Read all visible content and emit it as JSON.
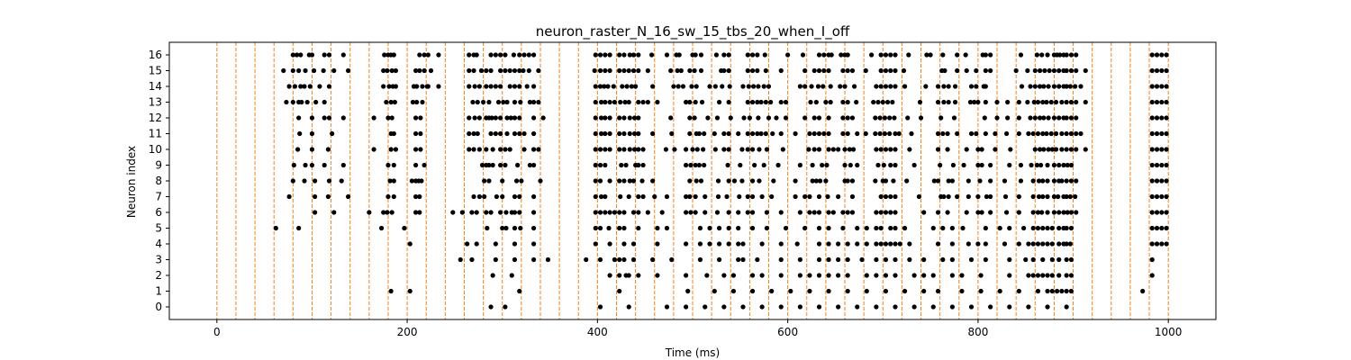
{
  "chart_data": {
    "type": "scatter",
    "title": "neuron_raster_N_16_sw_15_tbs_20_when_I_off",
    "xlabel": "Time (ms)",
    "ylabel": "Neuron index",
    "xlim": [
      -50,
      1050
    ],
    "ylim": [
      -0.8,
      16.8
    ],
    "x_ticks": [
      0,
      200,
      400,
      600,
      800,
      1000
    ],
    "y_ticks": [
      0,
      1,
      2,
      3,
      4,
      5,
      6,
      7,
      8,
      9,
      10,
      11,
      12,
      13,
      14,
      15,
      16
    ],
    "grid": false,
    "series_color": "#000000",
    "vline_color": "#ff7f0e",
    "vlines": [
      0,
      20,
      40,
      60,
      80,
      100,
      120,
      140,
      160,
      180,
      200,
      220,
      240,
      260,
      280,
      300,
      320,
      340,
      360,
      380,
      400,
      420,
      440,
      460,
      480,
      500,
      520,
      540,
      560,
      580,
      600,
      620,
      640,
      660,
      680,
      700,
      720,
      740,
      760,
      780,
      800,
      820,
      840,
      860,
      880,
      900,
      920,
      940,
      960,
      980,
      1000
    ],
    "spikes": [
      {
        "neuron": 16,
        "times": [
          80,
          84,
          88,
          97,
          100,
          113,
          118,
          133,
          176,
          180,
          183,
          186,
          213,
          218,
          222,
          233,
          265,
          270,
          273,
          288,
          293,
          298,
          303,
          312,
          318,
          323,
          328,
          333,
          398,
          403,
          408,
          413,
          423,
          428,
          434,
          438,
          443,
          457,
          473,
          483,
          486,
          500,
          503,
          509,
          525,
          533,
          538,
          558,
          563,
          568,
          576,
          600,
          616,
          633,
          638,
          643,
          646,
          656,
          660,
          663,
          688,
          698,
          703,
          708,
          713,
          727,
          746,
          750,
          763,
          778,
          787,
          805,
          808,
          813,
          845,
          862,
          867,
          873,
          880,
          883,
          886,
          890,
          893,
          898,
          903,
          983,
          988,
          993,
          998
        ]
      },
      {
        "neuron": 15,
        "times": [
          70,
          80,
          86,
          93,
          102,
          112,
          123,
          138,
          175,
          179,
          184,
          188,
          209,
          213,
          218,
          225,
          265,
          270,
          278,
          283,
          288,
          298,
          303,
          308,
          313,
          318,
          322,
          328,
          338,
          397,
          403,
          408,
          413,
          423,
          428,
          433,
          438,
          443,
          453,
          477,
          484,
          488,
          497,
          502,
          509,
          530,
          533,
          538,
          558,
          563,
          568,
          577,
          593,
          618,
          628,
          633,
          638,
          643,
          658,
          663,
          668,
          682,
          698,
          703,
          708,
          713,
          722,
          762,
          765,
          778,
          788,
          798,
          808,
          813,
          840,
          852,
          860,
          865,
          870,
          875,
          880,
          885,
          890,
          893,
          898,
          903,
          913,
          983,
          988,
          993,
          998
        ]
      },
      {
        "neuron": 14,
        "times": [
          76,
          82,
          88,
          92,
          98,
          108,
          118,
          175,
          181,
          185,
          188,
          207,
          210,
          216,
          222,
          221,
          233,
          265,
          271,
          276,
          283,
          288,
          293,
          298,
          308,
          313,
          318,
          326,
          333,
          398,
          403,
          407,
          411,
          417,
          426,
          431,
          436,
          440,
          458,
          480,
          485,
          490,
          499,
          504,
          518,
          524,
          531,
          539,
          553,
          559,
          564,
          569,
          575,
          580,
          613,
          618,
          625,
          632,
          637,
          645,
          655,
          660,
          670,
          693,
          698,
          703,
          708,
          713,
          723,
          745,
          758,
          764,
          769,
          776,
          793,
          798,
          806,
          808,
          846,
          855,
          860,
          865,
          869,
          874,
          880,
          885,
          890,
          893,
          897,
          902,
          908,
          983,
          988,
          993,
          998
        ]
      },
      {
        "neuron": 13,
        "times": [
          73,
          80,
          86,
          89,
          95,
          104,
          113,
          178,
          183,
          187,
          206,
          210,
          216,
          269,
          274,
          280,
          286,
          296,
          301,
          305,
          313,
          319,
          329,
          333,
          338,
          398,
          404,
          408,
          413,
          418,
          424,
          429,
          433,
          443,
          448,
          453,
          463,
          493,
          497,
          503,
          510,
          528,
          538,
          558,
          563,
          568,
          572,
          577,
          582,
          593,
          598,
          624,
          630,
          640,
          645,
          658,
          663,
          672,
          690,
          695,
          700,
          705,
          710,
          739,
          758,
          764,
          769,
          776,
          792,
          796,
          800,
          808,
          820,
          831,
          843,
          852,
          859,
          863,
          868,
          872,
          877,
          882,
          888,
          893,
          898,
          903,
          913,
          983,
          988,
          993,
          998
        ]
      },
      {
        "neuron": 12,
        "times": [
          86,
          100,
          113,
          118,
          133,
          165,
          180,
          184,
          209,
          214,
          265,
          271,
          276,
          283,
          286,
          289,
          293,
          298,
          305,
          309,
          313,
          318,
          333,
          343,
          398,
          404,
          408,
          413,
          423,
          428,
          434,
          439,
          443,
          477,
          497,
          502,
          516,
          526,
          540,
          554,
          560,
          569,
          580,
          588,
          598,
          618,
          628,
          633,
          643,
          658,
          663,
          668,
          692,
          697,
          702,
          707,
          712,
          726,
          740,
          761,
          775,
          807,
          820,
          831,
          843,
          855,
          860,
          865,
          869,
          874,
          880,
          885,
          890,
          893,
          898,
          903,
          983,
          988,
          993,
          998
        ]
      },
      {
        "neuron": 11,
        "times": [
          87,
          100,
          121,
          183,
          186,
          209,
          214,
          265,
          270,
          274,
          288,
          293,
          298,
          305,
          313,
          318,
          323,
          333,
          398,
          404,
          408,
          413,
          423,
          428,
          434,
          439,
          443,
          458,
          478,
          497,
          504,
          507,
          512,
          523,
          533,
          538,
          548,
          558,
          563,
          568,
          572,
          577,
          584,
          593,
          608,
          623,
          628,
          633,
          638,
          643,
          658,
          663,
          673,
          682,
          692,
          697,
          702,
          707,
          713,
          717,
          730,
          758,
          763,
          768,
          778,
          793,
          798,
          808,
          818,
          830,
          843,
          853,
          858,
          863,
          868,
          872,
          877,
          882,
          888,
          893,
          898,
          903,
          908,
          983,
          988,
          993,
          998
        ]
      },
      {
        "neuron": 10,
        "times": [
          85,
          100,
          117,
          165,
          183,
          188,
          209,
          214,
          265,
          270,
          276,
          283,
          290,
          298,
          303,
          308,
          323,
          333,
          338,
          398,
          403,
          408,
          413,
          423,
          428,
          434,
          439,
          443,
          448,
          472,
          481,
          493,
          500,
          505,
          511,
          524,
          533,
          538,
          552,
          558,
          563,
          570,
          578,
          595,
          622,
          628,
          633,
          643,
          648,
          653,
          660,
          665,
          669,
          693,
          698,
          703,
          708,
          713,
          728,
          758,
          768,
          788,
          800,
          804,
          818,
          834,
          860,
          865,
          869,
          874,
          878,
          882,
          888,
          893,
          898,
          903,
          913,
          983,
          988,
          993,
          998
        ]
      },
      {
        "neuron": 9,
        "times": [
          81,
          93,
          100,
          113,
          133,
          180,
          186,
          209,
          218,
          279,
          283,
          286,
          290,
          298,
          303,
          316,
          329,
          333,
          398,
          403,
          408,
          425,
          430,
          440,
          443,
          448,
          493,
          498,
          503,
          507,
          512,
          537,
          550,
          565,
          575,
          590,
          613,
          626,
          636,
          641,
          660,
          666,
          673,
          695,
          701,
          708,
          713,
          733,
          760,
          774,
          785,
          800,
          804,
          813,
          833,
          845,
          856,
          862,
          866,
          873,
          880,
          885,
          890,
          894,
          898,
          983,
          988,
          993,
          998
        ]
      },
      {
        "neuron": 8,
        "times": [
          80,
          92,
          103,
          118,
          131,
          182,
          186,
          205,
          209,
          212,
          215,
          281,
          286,
          300,
          315,
          320,
          340,
          398,
          403,
          413,
          423,
          428,
          434,
          438,
          447,
          458,
          497,
          504,
          509,
          527,
          538,
          544,
          552,
          563,
          570,
          585,
          608,
          626,
          630,
          634,
          640,
          660,
          663,
          668,
          692,
          700,
          703,
          711,
          725,
          754,
          758,
          769,
          773,
          790,
          802,
          813,
          828,
          845,
          858,
          864,
          868,
          873,
          880,
          885,
          888,
          893,
          898,
          903,
          983,
          988,
          993,
          998
        ]
      },
      {
        "neuron": 7,
        "times": [
          76,
          103,
          117,
          138,
          180,
          186,
          209,
          213,
          270,
          276,
          281,
          294,
          300,
          313,
          318,
          333,
          398,
          404,
          408,
          424,
          433,
          443,
          448,
          460,
          473,
          493,
          497,
          503,
          513,
          527,
          536,
          549,
          558,
          563,
          573,
          583,
          608,
          618,
          623,
          633,
          642,
          653,
          668,
          698,
          703,
          708,
          713,
          738,
          761,
          764,
          769,
          778,
          790,
          800,
          809,
          813,
          829,
          843,
          858,
          864,
          868,
          873,
          880,
          884,
          890,
          893,
          897,
          902,
          983,
          988,
          993,
          998
        ]
      },
      {
        "neuron": 6,
        "times": [
          103,
          123,
          160,
          175,
          179,
          184,
          209,
          213,
          248,
          258,
          268,
          273,
          283,
          288,
          298,
          304,
          310,
          313,
          318,
          333,
          398,
          403,
          408,
          413,
          418,
          423,
          428,
          438,
          443,
          453,
          468,
          493,
          498,
          503,
          513,
          526,
          538,
          548,
          558,
          563,
          578,
          593,
          613,
          623,
          628,
          633,
          643,
          648,
          658,
          663,
          668,
          693,
          698,
          703,
          708,
          713,
          743,
          758,
          768,
          788,
          800,
          804,
          813,
          830,
          843,
          858,
          863,
          867,
          873,
          880,
          885,
          890,
          894,
          898,
          903,
          983,
          988,
          993,
          998
        ]
      },
      {
        "neuron": 5,
        "times": [
          62,
          86,
          173,
          197,
          284,
          300,
          304,
          313,
          319,
          333,
          398,
          403,
          412,
          423,
          428,
          443,
          463,
          473,
          508,
          518,
          528,
          538,
          548,
          563,
          578,
          598,
          618,
          633,
          643,
          658,
          673,
          683,
          693,
          698,
          708,
          713,
          723,
          753,
          763,
          773,
          784,
          808,
          823,
          833,
          848,
          858,
          863,
          868,
          873,
          878,
          885,
          890,
          893,
          898,
          983,
          988,
          993,
          998
        ]
      },
      {
        "neuron": 4,
        "times": [
          203,
          263,
          273,
          293,
          313,
          333,
          398,
          413,
          428,
          438,
          463,
          493,
          508,
          518,
          528,
          538,
          548,
          553,
          573,
          593,
          610,
          633,
          643,
          653,
          663,
          673,
          683,
          693,
          698,
          703,
          708,
          713,
          718,
          728,
          758,
          773,
          790,
          800,
          808,
          828,
          843,
          853,
          858,
          863,
          868,
          873,
          878,
          885,
          890,
          893,
          897,
          983,
          988,
          993,
          998
        ]
      },
      {
        "neuron": 3,
        "times": [
          256,
          268,
          293,
          313,
          333,
          348,
          388,
          403,
          418,
          423,
          428,
          438,
          458,
          478,
          508,
          528,
          548,
          553,
          568,
          593,
          613,
          633,
          643,
          653,
          663,
          678,
          693,
          703,
          713,
          728,
          743,
          763,
          773,
          793,
          808,
          833,
          850,
          858,
          868,
          878,
          885,
          893,
          898,
          983
        ]
      },
      {
        "neuron": 2,
        "times": [
          290,
          310,
          413,
          423,
          430,
          433,
          443,
          463,
          493,
          515,
          533,
          543,
          563,
          573,
          593,
          613,
          623,
          633,
          643,
          653,
          663,
          683,
          693,
          703,
          713,
          733,
          743,
          753,
          773,
          783,
          803,
          833,
          853,
          858,
          863,
          868,
          873,
          878,
          885,
          893,
          898,
          983
        ]
      },
      {
        "neuron": 1,
        "times": [
          183,
          203,
          318,
          423,
          495,
          523,
          543,
          563,
          583,
          603,
          623,
          643,
          663,
          683,
          703,
          723,
          743,
          758,
          783,
          803,
          823,
          843,
          863,
          873,
          878,
          883,
          888,
          893,
          898,
          973
        ]
      },
      {
        "neuron": 0,
        "times": [
          288,
          303,
          403,
          433,
          473,
          493,
          513,
          533,
          553,
          573,
          593,
          613,
          633,
          653,
          673,
          693,
          713,
          733,
          753,
          773,
          793,
          813,
          833,
          853,
          873,
          893
        ]
      }
    ]
  }
}
